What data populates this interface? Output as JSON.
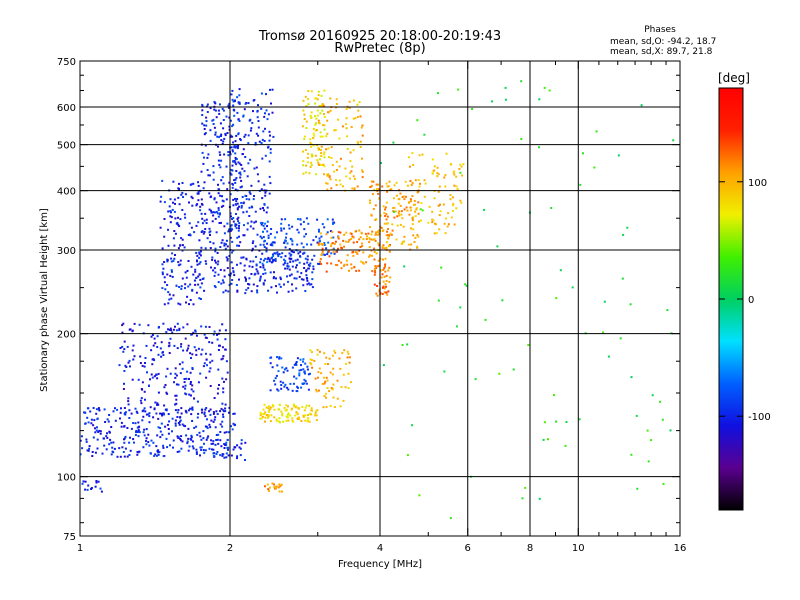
{
  "chart_data": {
    "type": "scatter",
    "title": "Tromsø 20160925 20:18:00-20:19:43",
    "subtitle": "RwPretec (8p)",
    "xlabel": "Frequency [MHz]",
    "ylabel": "Stationary phase Virtual Height [km]",
    "x_scale": "log",
    "y_scale": "log",
    "xlim": [
      1,
      16
    ],
    "ylim": [
      75,
      750
    ],
    "x_ticks": [
      1,
      2,
      4,
      6,
      8,
      10,
      16
    ],
    "x_tick_labels": [
      "1",
      "2",
      "4",
      "6",
      "8",
      "10",
      "16"
    ],
    "y_ticks": [
      75,
      100,
      200,
      300,
      400,
      500,
      600,
      750
    ],
    "y_tick_labels": [
      "75",
      "100",
      "200",
      "300",
      "400",
      "500",
      "600",
      "750"
    ],
    "grid": true,
    "phase_info": {
      "heading": "Phases",
      "line_o": "mean, sd,O: -94.2, 18.7",
      "line_x": "mean, sd,X:  89.7, 21.8"
    },
    "colorbar": {
      "label": "[deg]",
      "range": [
        -180,
        180
      ],
      "ticks": [
        -100,
        0,
        100
      ],
      "tick_labels": [
        "-100",
        "0",
        "100"
      ],
      "colormap": [
        "#000000",
        "#5a0090",
        "#1010e0",
        "#0060ff",
        "#00e0ff",
        "#00d060",
        "#40f000",
        "#f0f000",
        "#ffa000",
        "#ff2000",
        "#ff0000"
      ]
    },
    "point_clusters": [
      {
        "name": "",
        "freq_range": [
          1.0,
          2.05
        ],
        "height_range": [
          110,
          140
        ],
        "phase": -100,
        "count": 330
      },
      {
        "name": "",
        "freq_range": [
          1.2,
          2.0
        ],
        "height_range": [
          135,
          210
        ],
        "phase": -105,
        "count": 260
      },
      {
        "name": "",
        "freq_range": [
          1.0,
          1.15
        ],
        "height_range": [
          93,
          98
        ],
        "phase": -95,
        "count": 14
      },
      {
        "name": "",
        "freq_range": [
          1.45,
          1.75
        ],
        "height_range": [
          230,
          420
        ],
        "phase": -100,
        "count": 160
      },
      {
        "name": "",
        "freq_range": [
          1.75,
          2.1
        ],
        "height_range": [
          300,
          620
        ],
        "phase": -100,
        "count": 230
      },
      {
        "name": "",
        "freq_range": [
          2.0,
          2.45
        ],
        "height_range": [
          300,
          660
        ],
        "phase": -95,
        "count": 200
      },
      {
        "name": "",
        "freq_range": [
          1.7,
          2.95
        ],
        "height_range": [
          243,
          300
        ],
        "phase": -100,
        "count": 220
      },
      {
        "name": "",
        "freq_range": [
          2.3,
          3.3
        ],
        "height_range": [
          280,
          350
        ],
        "phase": -85,
        "count": 120
      },
      {
        "name": "",
        "freq_range": [
          2.8,
          3.1
        ],
        "height_range": [
          430,
          650
        ],
        "phase": 80,
        "count": 90
      },
      {
        "name": "",
        "freq_range": [
          3.0,
          3.7
        ],
        "height_range": [
          400,
          630
        ],
        "phase": 100,
        "count": 100
      },
      {
        "name": "",
        "freq_range": [
          3.0,
          4.2
        ],
        "height_range": [
          270,
          330
        ],
        "phase": 115,
        "count": 130
      },
      {
        "name": "",
        "freq_range": [
          3.8,
          4.8
        ],
        "height_range": [
          300,
          420
        ],
        "phase": 105,
        "count": 150
      },
      {
        "name": "",
        "freq_range": [
          3.9,
          4.2
        ],
        "height_range": [
          240,
          280
        ],
        "phase": 120,
        "count": 40
      },
      {
        "name": "",
        "freq_range": [
          4.5,
          5.9
        ],
        "height_range": [
          320,
          480
        ],
        "phase": 95,
        "count": 90
      },
      {
        "name": "",
        "freq_range": [
          2.3,
          3.0
        ],
        "height_range": [
          130,
          142
        ],
        "phase": 85,
        "count": 110
      },
      {
        "name": "",
        "freq_range": [
          2.9,
          3.5
        ],
        "height_range": [
          140,
          185
        ],
        "phase": 100,
        "count": 70
      },
      {
        "name": "",
        "freq_range": [
          2.4,
          2.9
        ],
        "height_range": [
          150,
          180
        ],
        "phase": -85,
        "count": 70
      },
      {
        "name": "",
        "freq_range": [
          2.35,
          2.55
        ],
        "height_range": [
          93,
          97
        ],
        "phase": 110,
        "count": 20
      },
      {
        "name": "",
        "freq_range": [
          1.85,
          2.15
        ],
        "height_range": [
          108,
          120
        ],
        "phase": -95,
        "count": 30
      },
      {
        "name": "",
        "freq_range": [
          4.0,
          16.0
        ],
        "height_range": [
          80,
          700
        ],
        "phase": 20,
        "count": 90
      }
    ]
  }
}
